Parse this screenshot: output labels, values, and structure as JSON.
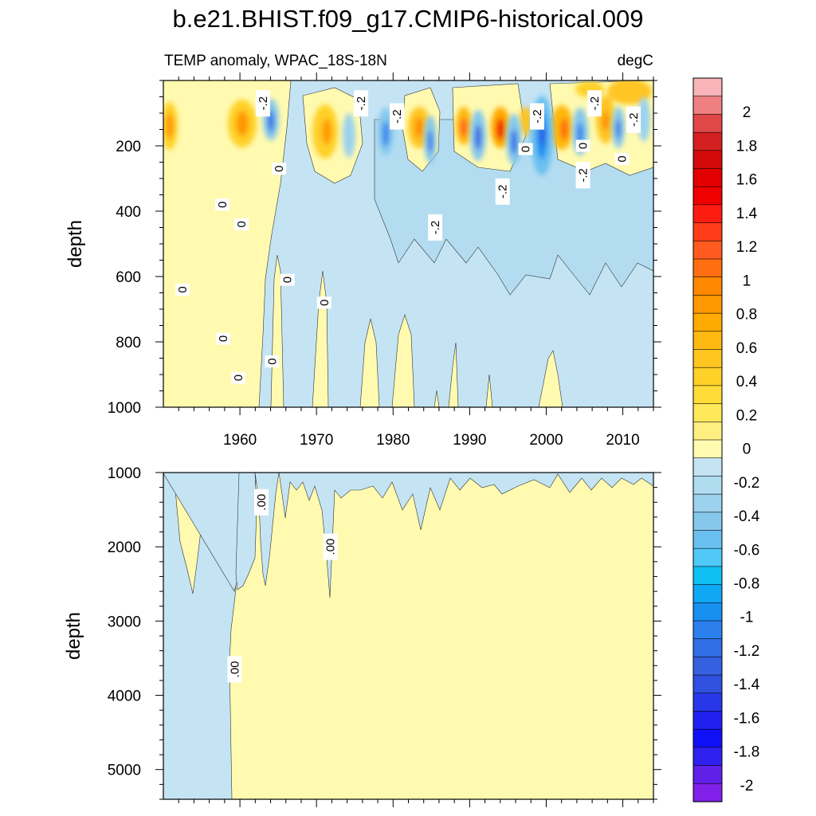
{
  "title": "b.e21.BHIST.f09_g17.CMIP6-historical.009",
  "chart_data": [
    {
      "type": "heatmap",
      "panel": "upper",
      "left_label": "TEMP anomaly, WPAC_18S-18N",
      "right_label": "degC",
      "ylabel": "depth",
      "xlabel": "",
      "xlim": [
        1950,
        2014
      ],
      "ylim": [
        0,
        1000
      ],
      "y_reversed": true,
      "x_ticks": [
        1960,
        1970,
        1980,
        1990,
        2000,
        2010
      ],
      "x_tick_labels": [
        "1960",
        "1970",
        "1980",
        "1990",
        "2000",
        "2010"
      ],
      "y_ticks": [
        200,
        400,
        600,
        800,
        1000
      ],
      "y_tick_labels": [
        "200",
        "400",
        "600",
        "800",
        "1000"
      ],
      "contour_labels": [
        {
          "text": "0",
          "x": 1952.5,
          "y": 640
        },
        {
          "text": "0",
          "x": 1957.7,
          "y": 380
        },
        {
          "text": "0",
          "x": 1957.8,
          "y": 790
        },
        {
          "text": "0",
          "x": 1959.8,
          "y": 910
        },
        {
          "text": "0",
          "x": 1960.2,
          "y": 440
        },
        {
          "text": "0",
          "x": 1964.2,
          "y": 860
        },
        {
          "text": "0",
          "x": 1965.1,
          "y": 270
        },
        {
          "text": "0",
          "x": 1966.2,
          "y": 610
        },
        {
          "text": "0",
          "x": 1971.0,
          "y": 680
        },
        {
          "text": "-.2",
          "x": 1963.0,
          "y": 70
        },
        {
          "text": "-.2",
          "x": 1975.8,
          "y": 70
        },
        {
          "text": "-.2",
          "x": 1980.5,
          "y": 110
        },
        {
          "text": "-.2",
          "x": 1985.5,
          "y": 450
        },
        {
          "text": "-.2",
          "x": 1994.3,
          "y": 340
        },
        {
          "text": "0",
          "x": 1997.3,
          "y": 210
        },
        {
          "text": "-.2",
          "x": 1998.8,
          "y": 110
        },
        {
          "text": "0",
          "x": 2004.8,
          "y": 200
        },
        {
          "text": "-.2",
          "x": 2004.8,
          "y": 290
        },
        {
          "text": "-.2",
          "x": 2006.3,
          "y": 70
        },
        {
          "text": "0",
          "x": 2009.9,
          "y": 240
        },
        {
          "text": "-.2",
          "x": 2011.4,
          "y": 120
        }
      ]
    },
    {
      "type": "heatmap",
      "panel": "lower",
      "ylabel": "depth",
      "xlabel": "",
      "xlim": [
        1950,
        2014
      ],
      "ylim": [
        1000,
        5400
      ],
      "y_reversed": true,
      "y_ticks": [
        1000,
        2000,
        3000,
        4000,
        5000
      ],
      "y_tick_labels": [
        "1000",
        "2000",
        "3000",
        "4000",
        "5000"
      ],
      "contour_labels": [
        {
          "text": ".00",
          "x": 1962.8,
          "y": 1400
        },
        {
          "text": ".00",
          "x": 1971.8,
          "y": 2000
        },
        {
          "text": ".00",
          "x": 1959.3,
          "y": 3650
        }
      ]
    }
  ],
  "colorbar": {
    "min": -2.1,
    "max": 2.2,
    "labels": [
      "2",
      "1.8",
      "1.6",
      "1.4",
      "1.2",
      "1",
      "0.8",
      "0.6",
      "0.4",
      "0.2",
      "0",
      "-0.2",
      "-0.4",
      "-0.6",
      "-0.8",
      "-1",
      "-1.2",
      "-1.4",
      "-1.6",
      "-1.8",
      "-2"
    ],
    "label_values": [
      2,
      1.8,
      1.6,
      1.4,
      1.2,
      1,
      0.8,
      0.6,
      0.4,
      0.2,
      0,
      -0.2,
      -0.4,
      -0.6,
      -0.8,
      -1,
      -1.2,
      -1.4,
      -1.6,
      -1.8,
      -2
    ],
    "colors_top_to_bottom": [
      "#f8b4b8",
      "#f07f82",
      "#e04848",
      "#d42020",
      "#d40a0a",
      "#e30000",
      "#f00000",
      "#fc1c10",
      "#ff3c18",
      "#ff5a20",
      "#ff6e10",
      "#ff8800",
      "#ff9800",
      "#ffaa00",
      "#ffb810",
      "#ffc520",
      "#ffd028",
      "#ffdc38",
      "#ffe85a",
      "#ffef80",
      "#fffab0",
      "#c4e4f4",
      "#b0dcf0",
      "#9cd2ee",
      "#86c8ec",
      "#6ac0f0",
      "#50c8f8",
      "#10c0f4",
      "#10a8f4",
      "#1890f0",
      "#2c80ee",
      "#306ee6",
      "#3560e0",
      "#3050e0",
      "#2838e8",
      "#2020f0",
      "#1010f8",
      "#3020f0",
      "#6020e8",
      "#8020e8"
    ]
  }
}
